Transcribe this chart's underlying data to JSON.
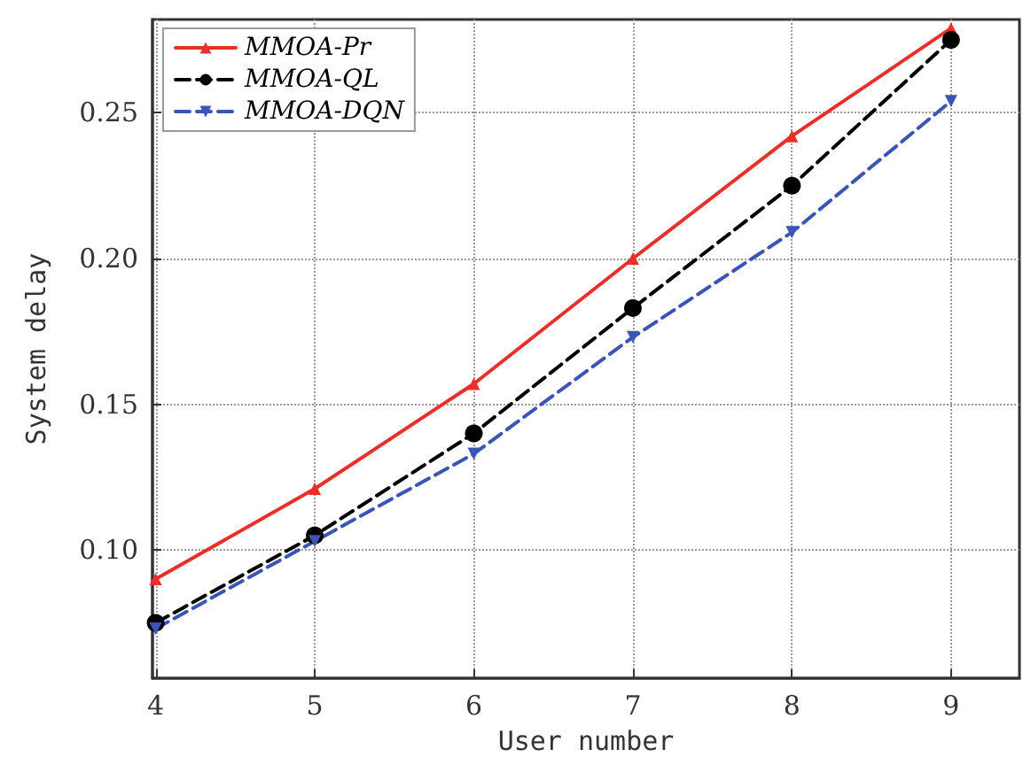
{
  "chart_data": {
    "type": "line",
    "xlabel": "User number",
    "ylabel": "System delay",
    "x": [
      4,
      5,
      6,
      7,
      8,
      9
    ],
    "series": [
      {
        "name": "MMOA-Pr",
        "color": "#e8302a",
        "marker": "triangle",
        "line_style": "solid",
        "values": [
          0.09,
          0.121,
          0.157,
          0.2,
          0.242,
          0.279
        ]
      },
      {
        "name": "MMOA-QL",
        "color": "#000000",
        "marker": "circle",
        "line_style": "dashed",
        "values": [
          0.075,
          0.105,
          0.14,
          0.183,
          0.225,
          0.275
        ]
      },
      {
        "name": "MMOA-DQN",
        "color": "#3a55b4",
        "marker": "triangle-down",
        "line_style": "dashed",
        "values": [
          0.073,
          0.103,
          0.133,
          0.173,
          0.209,
          0.254
        ]
      }
    ],
    "xlim": [
      3.98,
      9.43
    ],
    "xticks": [
      4,
      5,
      6,
      7,
      8,
      9
    ],
    "ylim": [
      0.056,
      0.282
    ],
    "yticks": [
      {
        "value": 0.1,
        "label": "0.10"
      },
      0.15,
      {
        "value": 0.2,
        "label": "0.20"
      },
      0.25
    ],
    "grid": true,
    "legend": "top left"
  }
}
